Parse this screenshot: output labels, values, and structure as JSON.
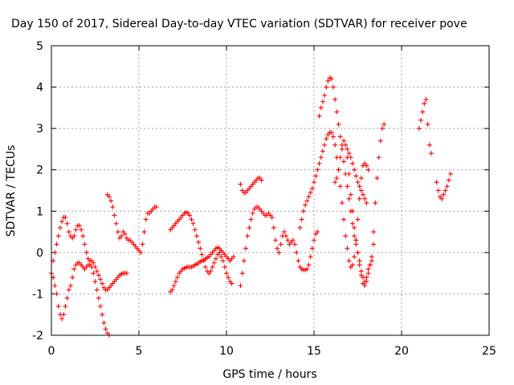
{
  "chart_data": {
    "type": "scatter",
    "title": "Day 150 of 2017, Sidereal Day-to-day VTEC variation (SDTVAR) for receiver pove",
    "xlabel": "GPS time / hours",
    "ylabel": "SDTVAR / TECUs",
    "xlim": [
      0,
      25
    ],
    "ylim": [
      -2,
      5
    ],
    "xticks": [
      0,
      5,
      10,
      15,
      20,
      25
    ],
    "yticks": [
      -2,
      -1,
      0,
      1,
      2,
      3,
      4,
      5
    ],
    "grid": true,
    "marker": "+",
    "color": "#ff0000",
    "series": [
      {
        "name": "s1",
        "x": [
          0.0,
          0.1,
          0.2,
          0.3,
          0.4,
          0.5,
          0.6,
          0.7,
          0.8,
          0.9,
          1.0,
          1.1,
          1.2,
          1.3,
          1.4,
          1.5,
          1.6,
          1.7,
          1.8,
          1.9,
          2.0,
          2.1,
          2.2,
          2.3,
          2.4,
          2.5,
          2.6,
          2.7,
          2.8,
          2.9,
          3.0,
          3.1,
          3.2,
          3.3
        ],
        "y": [
          -0.5,
          -0.6,
          -0.8,
          -1.0,
          -1.3,
          -1.5,
          -1.6,
          -1.5,
          -1.3,
          -1.1,
          -0.9,
          -0.8,
          -0.6,
          -0.4,
          -0.3,
          -0.25,
          -0.25,
          -0.3,
          -0.35,
          -0.4,
          -0.35,
          -0.3,
          -0.3,
          -0.35,
          -0.5,
          -0.7,
          -0.9,
          -1.1,
          -1.3,
          -1.5,
          -1.7,
          -1.85,
          -1.95,
          -2.0
        ]
      },
      {
        "name": "s2",
        "x": [
          0.1,
          0.2,
          0.3,
          0.4,
          0.5,
          0.6,
          0.7,
          0.8,
          0.9,
          1.0,
          1.1,
          1.2,
          1.3,
          1.4,
          1.5,
          1.6,
          1.7,
          1.8,
          1.9,
          2.0,
          2.1,
          2.2,
          2.3,
          2.4,
          2.5,
          2.6,
          2.7,
          2.8,
          2.9,
          3.0,
          3.1,
          3.2,
          3.3,
          3.4,
          3.5,
          3.6,
          3.7,
          3.8,
          3.9,
          4.0,
          4.1,
          4.2,
          4.3
        ],
        "y": [
          -0.2,
          0.0,
          0.2,
          0.4,
          0.6,
          0.75,
          0.85,
          0.85,
          0.7,
          0.5,
          0.4,
          0.35,
          0.4,
          0.55,
          0.65,
          0.65,
          0.55,
          0.4,
          0.2,
          0.0,
          -0.15,
          -0.2,
          -0.2,
          -0.25,
          -0.35,
          -0.45,
          -0.55,
          -0.65,
          -0.75,
          -0.85,
          -0.9,
          -0.9,
          -0.85,
          -0.8,
          -0.75,
          -0.7,
          -0.65,
          -0.6,
          -0.55,
          -0.52,
          -0.5,
          -0.5,
          -0.5
        ]
      },
      {
        "name": "s3",
        "x": [
          3.2,
          3.3,
          3.4,
          3.5,
          3.6,
          3.7,
          3.8,
          3.9,
          4.0,
          4.1,
          4.2,
          4.3,
          4.4,
          4.5,
          4.6,
          4.7,
          4.8,
          4.9,
          5.0,
          5.1,
          5.2,
          5.3,
          5.4,
          5.5,
          5.6,
          5.7,
          5.8,
          5.9,
          6.0
        ],
        "y": [
          1.4,
          1.35,
          1.25,
          1.1,
          0.9,
          0.7,
          0.5,
          0.35,
          0.4,
          0.5,
          0.45,
          0.35,
          0.3,
          0.3,
          0.25,
          0.2,
          0.15,
          0.1,
          0.05,
          0.0,
          0.2,
          0.5,
          0.8,
          0.95,
          0.95,
          1.0,
          1.05,
          1.1,
          1.1
        ]
      },
      {
        "name": "s4",
        "x": [
          6.8,
          6.9,
          7.0,
          7.1,
          7.2,
          7.3,
          7.4,
          7.5,
          7.6,
          7.7,
          7.8,
          7.9,
          8.0,
          8.1,
          8.2,
          8.3,
          8.4,
          8.5,
          8.6,
          8.7,
          8.8,
          8.9,
          9.0,
          9.1,
          9.2,
          9.3,
          9.4,
          9.5,
          9.6,
          9.7,
          9.8,
          9.9,
          10.0,
          10.1,
          10.2,
          10.3
        ],
        "y": [
          0.55,
          0.6,
          0.65,
          0.7,
          0.75,
          0.8,
          0.85,
          0.9,
          0.95,
          0.97,
          0.95,
          0.9,
          0.8,
          0.7,
          0.55,
          0.4,
          0.25,
          0.1,
          -0.05,
          -0.2,
          -0.35,
          -0.45,
          -0.5,
          -0.45,
          -0.35,
          -0.25,
          -0.15,
          -0.05,
          0.0,
          -0.1,
          -0.2,
          -0.35,
          -0.5,
          -0.6,
          -0.7,
          -0.75
        ]
      },
      {
        "name": "s5",
        "x": [
          6.8,
          6.9,
          7.0,
          7.1,
          7.2,
          7.3,
          7.4,
          7.5,
          7.6,
          7.7,
          7.8,
          7.9,
          8.0,
          8.1,
          8.2,
          8.3,
          8.4,
          8.5,
          8.6,
          8.7,
          8.8,
          8.9,
          9.0,
          9.1,
          9.2,
          9.3,
          9.4,
          9.5,
          9.6,
          9.7,
          9.8,
          9.9,
          10.0,
          10.1,
          10.2,
          10.3,
          10.4
        ],
        "y": [
          -0.95,
          -0.9,
          -0.8,
          -0.7,
          -0.6,
          -0.5,
          -0.45,
          -0.4,
          -0.38,
          -0.36,
          -0.35,
          -0.35,
          -0.35,
          -0.33,
          -0.3,
          -0.28,
          -0.25,
          -0.22,
          -0.2,
          -0.18,
          -0.15,
          -0.12,
          -0.1,
          -0.05,
          0.0,
          0.05,
          0.1,
          0.12,
          0.1,
          0.05,
          0.0,
          -0.05,
          -0.1,
          -0.15,
          -0.2,
          -0.15,
          -0.1
        ]
      },
      {
        "name": "s6",
        "x": [
          10.8,
          10.9,
          11.0,
          11.1,
          11.2,
          11.3,
          11.4,
          11.5,
          11.6,
          11.7,
          11.8,
          11.9,
          12.0,
          12.1,
          12.2,
          12.3,
          12.4,
          12.5,
          12.6,
          12.7,
          12.8,
          12.9,
          13.0,
          13.1,
          13.2,
          13.3,
          13.4,
          13.5,
          13.6,
          13.7,
          13.8,
          13.9,
          14.0,
          14.1,
          14.2,
          14.3,
          14.4,
          14.5,
          14.6,
          14.7,
          14.8,
          14.9,
          15.0,
          15.1,
          15.2
        ],
        "y": [
          -0.8,
          -0.5,
          -0.2,
          0.1,
          0.4,
          0.6,
          0.8,
          0.95,
          1.05,
          1.1,
          1.1,
          1.05,
          1.0,
          0.95,
          0.9,
          0.9,
          0.95,
          0.9,
          0.85,
          0.6,
          0.3,
          0.1,
          0.0,
          0.2,
          0.4,
          0.5,
          0.4,
          0.3,
          0.2,
          0.25,
          0.3,
          0.2,
          0.0,
          -0.2,
          -0.35,
          -0.4,
          -0.42,
          -0.42,
          -0.4,
          -0.3,
          -0.1,
          0.1,
          0.3,
          0.45,
          0.5
        ]
      },
      {
        "name": "s7",
        "x": [
          10.8,
          10.9,
          11.0,
          11.1,
          11.2,
          11.3,
          11.4,
          11.5,
          11.6,
          11.7,
          11.8,
          11.9,
          12.0
        ],
        "y": [
          1.65,
          1.5,
          1.45,
          1.45,
          1.5,
          1.55,
          1.6,
          1.65,
          1.7,
          1.75,
          1.8,
          1.8,
          1.75
        ]
      },
      {
        "name": "s8",
        "x": [
          14.2,
          14.3,
          14.4,
          14.5,
          14.6,
          14.7,
          14.8,
          14.9,
          15.0,
          15.1,
          15.2,
          15.3,
          15.4,
          15.5,
          15.6,
          15.7,
          15.8,
          15.9,
          16.0,
          16.1,
          16.2,
          16.3,
          16.4,
          16.5,
          16.6,
          16.7,
          16.8,
          16.9,
          17.0,
          17.1,
          17.2,
          17.3,
          17.4,
          17.5,
          17.6,
          17.7,
          17.8,
          17.9,
          18.0,
          18.1
        ],
        "y": [
          0.6,
          0.8,
          1.0,
          1.15,
          1.25,
          1.35,
          1.45,
          1.55,
          1.7,
          1.85,
          2.0,
          2.15,
          2.3,
          2.45,
          2.6,
          2.75,
          2.85,
          2.9,
          2.9,
          2.8,
          2.6,
          2.3,
          2.0,
          1.6,
          1.2,
          0.8,
          0.4,
          0.1,
          -0.2,
          -0.35,
          -0.3,
          -0.1,
          0.3,
          0.8,
          1.3,
          1.8,
          2.1,
          2.15,
          2.1,
          2.0
        ]
      },
      {
        "name": "s9",
        "x": [
          15.3,
          15.4,
          15.5,
          15.6,
          15.7,
          15.8,
          15.9,
          16.0,
          16.1,
          16.2,
          16.3,
          16.4,
          16.5,
          16.6,
          16.7,
          16.8,
          16.9,
          17.0,
          17.1,
          17.2,
          17.3,
          17.4,
          17.5,
          17.6,
          17.7,
          17.8,
          17.9,
          18.0,
          18.1,
          18.2,
          18.3,
          18.4,
          18.5,
          18.6,
          18.7,
          18.8,
          18.9,
          19.0
        ],
        "y": [
          3.3,
          3.5,
          3.65,
          3.8,
          4.0,
          4.15,
          4.22,
          4.2,
          4.0,
          3.7,
          3.4,
          3.1,
          2.8,
          2.5,
          2.2,
          1.9,
          1.6,
          1.3,
          1.0,
          0.7,
          0.4,
          0.2,
          0.0,
          -0.2,
          -0.45,
          -0.6,
          -0.7,
          -0.6,
          -0.4,
          -0.3,
          -0.2,
          0.5,
          1.2,
          1.8,
          2.3,
          2.7,
          3.0,
          3.1
        ]
      },
      {
        "name": "s10",
        "x": [
          16.2,
          16.3,
          16.4,
          16.5,
          16.6,
          16.7,
          16.8,
          16.9,
          17.0,
          17.1,
          17.2,
          17.3,
          17.4,
          17.5,
          17.6,
          17.7,
          17.8,
          17.9,
          18.0,
          18.1,
          18.2,
          18.3,
          18.4
        ],
        "y": [
          1.7,
          1.8,
          2.0,
          2.3,
          2.6,
          2.7,
          2.6,
          2.3,
          1.9,
          1.4,
          1.0,
          0.6,
          0.3,
          0.0,
          -0.3,
          -0.55,
          -0.75,
          -0.8,
          -0.7,
          -0.5,
          -0.3,
          -0.1,
          0.2
        ]
      },
      {
        "name": "s11",
        "x": [
          16.9,
          17.0,
          17.1,
          17.2,
          17.3,
          17.4,
          17.5,
          17.6,
          17.7,
          17.8,
          17.9,
          18.0
        ],
        "y": [
          2.5,
          2.4,
          2.3,
          2.15,
          2.0,
          1.85,
          1.7,
          1.6,
          1.5,
          1.4,
          1.3,
          1.2
        ]
      },
      {
        "name": "s12",
        "x": [
          21.0,
          21.1,
          21.2,
          21.3,
          21.4,
          21.5,
          21.6,
          21.7
        ],
        "y": [
          3.0,
          3.2,
          3.4,
          3.6,
          3.7,
          3.1,
          2.6,
          2.4
        ]
      },
      {
        "name": "s13",
        "x": [
          22.0,
          22.1,
          22.2,
          22.3,
          22.4,
          22.5,
          22.6,
          22.7,
          22.8
        ],
        "y": [
          1.7,
          1.5,
          1.35,
          1.3,
          1.4,
          1.5,
          1.6,
          1.75,
          1.9
        ]
      }
    ]
  }
}
